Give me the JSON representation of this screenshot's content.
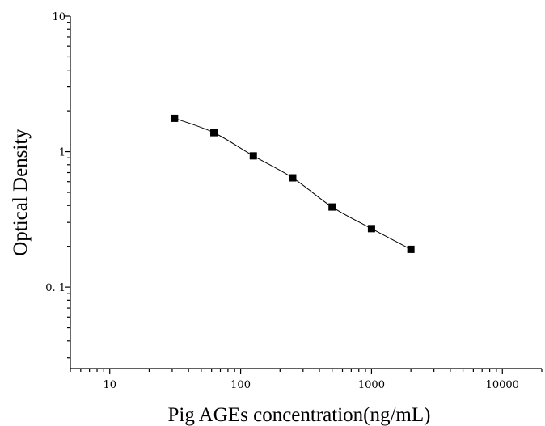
{
  "chart_data": {
    "type": "scatter",
    "title": "",
    "xlabel": "Pig AGEs concentration(ng/mL)",
    "ylabel": "Optical Density",
    "x_scale": "log",
    "y_scale": "log",
    "xlim": [
      5,
      20000
    ],
    "ylim": [
      0.025,
      10
    ],
    "x_ticks": [
      10,
      100,
      1000,
      10000
    ],
    "x_tick_labels": [
      "10",
      "100",
      "1000",
      "10000"
    ],
    "y_ticks": [
      0.1,
      1,
      10
    ],
    "y_tick_labels": [
      "0. 1",
      "1",
      "10"
    ],
    "grid": false,
    "legend": "none",
    "series": [
      {
        "x": [
          31.25,
          62.5,
          125,
          250,
          500,
          1000,
          2000
        ],
        "y": [
          1.76,
          1.38,
          0.93,
          0.64,
          0.39,
          0.27,
          0.19
        ],
        "marker": "square",
        "fit_line": true,
        "color": "#000000"
      }
    ]
  }
}
